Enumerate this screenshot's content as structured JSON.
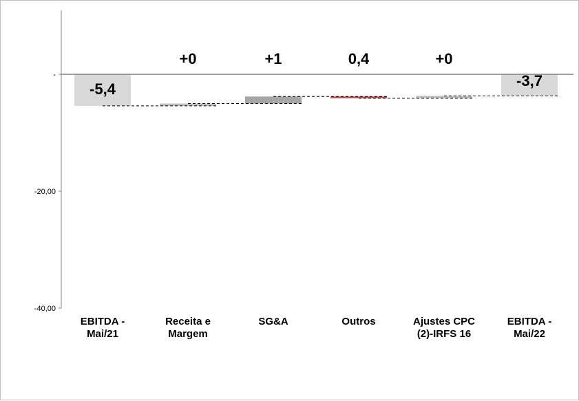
{
  "chart_data": {
    "type": "waterfall",
    "categories": [
      [
        "EBITDA -",
        "Mai/21"
      ],
      [
        "Receita e",
        "Margem"
      ],
      [
        "SG&A"
      ],
      [
        "Outros"
      ],
      [
        "Ajustes CPC",
        "(2)-IRFS 16"
      ],
      [
        "EBITDA -",
        "Mai/22"
      ]
    ],
    "bars": [
      {
        "kind": "total",
        "start": 0,
        "end": -5.4,
        "label": "-5,4",
        "color": "#d9d9d9"
      },
      {
        "kind": "delta",
        "start": -5.4,
        "end": -5.0,
        "label": "+0",
        "color": "#bfbfbf"
      },
      {
        "kind": "delta",
        "start": -5.0,
        "end": -3.8,
        "label": "+1",
        "color": "#a6a6a6"
      },
      {
        "kind": "delta",
        "start": -3.8,
        "end": -4.1,
        "label": "0,4",
        "color": "#c0504d"
      },
      {
        "kind": "delta",
        "start": -4.1,
        "end": -3.7,
        "label": "+0",
        "color": "#bfbfbf"
      },
      {
        "kind": "total",
        "start": 0,
        "end": -3.7,
        "label": "-3,7",
        "color": "#d9d9d9"
      }
    ],
    "yaxis": {
      "ticks": [
        {
          "value": 0,
          "label": "-"
        },
        {
          "value": -20,
          "label": "-20,00"
        },
        {
          "value": -40,
          "label": "-40,00"
        }
      ],
      "range": [
        -40,
        12
      ]
    },
    "connector_style": "dashed",
    "legend": "none",
    "grid": false
  }
}
